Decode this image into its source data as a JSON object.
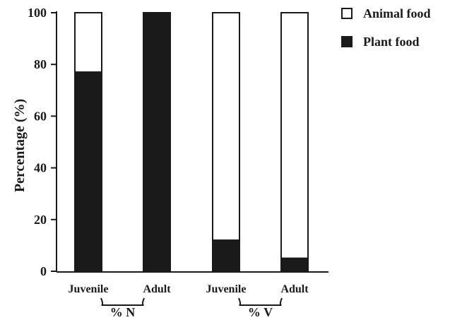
{
  "chart_data": {
    "type": "bar",
    "stacked": true,
    "categories": [
      "Juvenile",
      "Adult",
      "Juvenile",
      "Adult"
    ],
    "groups": [
      {
        "label": "% N",
        "categories": [
          "Juvenile",
          "Adult"
        ]
      },
      {
        "label": "% V",
        "categories": [
          "Juvenile",
          "Adult"
        ]
      }
    ],
    "series": [
      {
        "name": "Plant food",
        "color": "#1a1a1a",
        "values": [
          77,
          99.5,
          12,
          5
        ]
      },
      {
        "name": "Animal food",
        "color": "#ffffff",
        "values": [
          23,
          0.5,
          88,
          95
        ]
      }
    ],
    "ylabel": "Percentage (%)",
    "xlabel": "",
    "ylim": [
      0,
      100
    ],
    "yticks": [
      0,
      20,
      40,
      60,
      80,
      100
    ],
    "legend_position": "top-right",
    "grid": false
  }
}
